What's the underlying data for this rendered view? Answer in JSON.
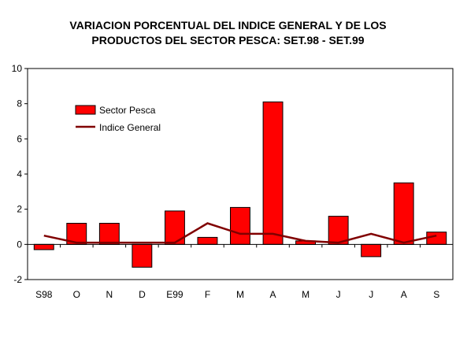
{
  "chart_data": {
    "type": "bar",
    "title_line1": "VARIACION PORCENTUAL DEL INDICE GENERAL Y DE LOS",
    "title_line2": "PRODUCTOS DEL SECTOR PESCA: SET.98 - SET.99",
    "categories": [
      "S98",
      "O",
      "N",
      "D",
      "E99",
      "F",
      "M",
      "A",
      "M",
      "J",
      "J",
      "A",
      "S"
    ],
    "series": [
      {
        "name": "Sector Pesca",
        "kind": "bar",
        "color": "#ff0000",
        "values": [
          -0.3,
          1.2,
          1.2,
          -1.3,
          1.9,
          0.4,
          2.1,
          8.1,
          0.2,
          1.6,
          -0.7,
          3.5,
          0.7
        ]
      },
      {
        "name": "Indice General",
        "kind": "line",
        "color": "#800000",
        "values": [
          0.5,
          0.1,
          0.1,
          0.1,
          0.1,
          1.2,
          0.6,
          0.6,
          0.2,
          0.1,
          0.6,
          0.1,
          0.5
        ]
      }
    ],
    "ylim": [
      -2,
      10
    ],
    "yticks": [
      -2,
      0,
      2,
      4,
      6,
      8,
      10
    ],
    "grid": false,
    "legend_position": "top-left"
  }
}
